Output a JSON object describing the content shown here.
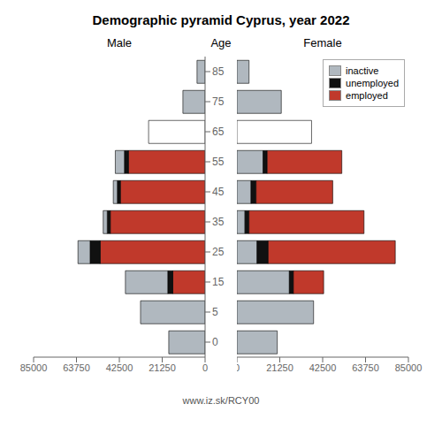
{
  "title": "Demographic pyramid Cyprus, year 2022",
  "subtitle": "www.iz.sk/RCY00",
  "chart_data": [
    {
      "type": "bar",
      "orientation": "horizontal",
      "stacked": true,
      "title": "Male",
      "ylabel": "Age",
      "categories": [
        0,
        5,
        15,
        25,
        35,
        45,
        55,
        65,
        75,
        85
      ],
      "series": [
        {
          "name": "employed",
          "color": "#c0392b",
          "values": [
            0,
            0,
            16000,
            52000,
            47000,
            42000,
            38000,
            0,
            0,
            0
          ]
        },
        {
          "name": "unemployed",
          "color": "#111111",
          "values": [
            0,
            0,
            2500,
            5000,
            1500,
            1500,
            2000,
            0,
            0,
            0
          ]
        },
        {
          "name": "inactive",
          "color": "#b0b8bf",
          "colors": [
            "#b0b8bf",
            "#b0b8bf",
            "#b0b8bf",
            "#b0b8bf",
            "#b0b8bf",
            "#b0b8bf",
            "#b0b8bf",
            "#ffffff",
            "#b0b8bf",
            "#b0b8bf"
          ],
          "values": [
            18000,
            32000,
            21000,
            6000,
            2000,
            2000,
            4500,
            28000,
            11000,
            4000
          ]
        }
      ],
      "xlim": [
        85000,
        0
      ],
      "xticks": [
        0,
        21250,
        42500,
        63750,
        85000
      ],
      "grid": false
    },
    {
      "type": "bar",
      "orientation": "horizontal",
      "stacked": true,
      "title": "Female",
      "categories": [
        0,
        5,
        15,
        25,
        35,
        45,
        55,
        65,
        75,
        85
      ],
      "series": [
        {
          "name": "inactive",
          "color": "#b0b8bf",
          "colors": [
            "#b0b8bf",
            "#b0b8bf",
            "#b0b8bf",
            "#b0b8bf",
            "#b0b8bf",
            "#b0b8bf",
            "#b0b8bf",
            "#ffffff",
            "#b0b8bf",
            "#b0b8bf"
          ],
          "values": [
            20000,
            38000,
            26000,
            10000,
            4000,
            7000,
            13000,
            37000,
            22000,
            6000
          ]
        },
        {
          "name": "unemployed",
          "color": "#111111",
          "values": [
            0,
            0,
            2000,
            5500,
            2000,
            2500,
            2000,
            0,
            0,
            0
          ]
        },
        {
          "name": "employed",
          "color": "#c0392b",
          "values": [
            0,
            0,
            15000,
            63000,
            57000,
            38000,
            37000,
            0,
            0,
            0
          ]
        }
      ],
      "xlim": [
        0,
        85000
      ],
      "xticks": [
        0,
        21250,
        42500,
        63750,
        85000
      ],
      "grid": false,
      "tick_labels": "x",
      "legend": "upper right"
    }
  ]
}
